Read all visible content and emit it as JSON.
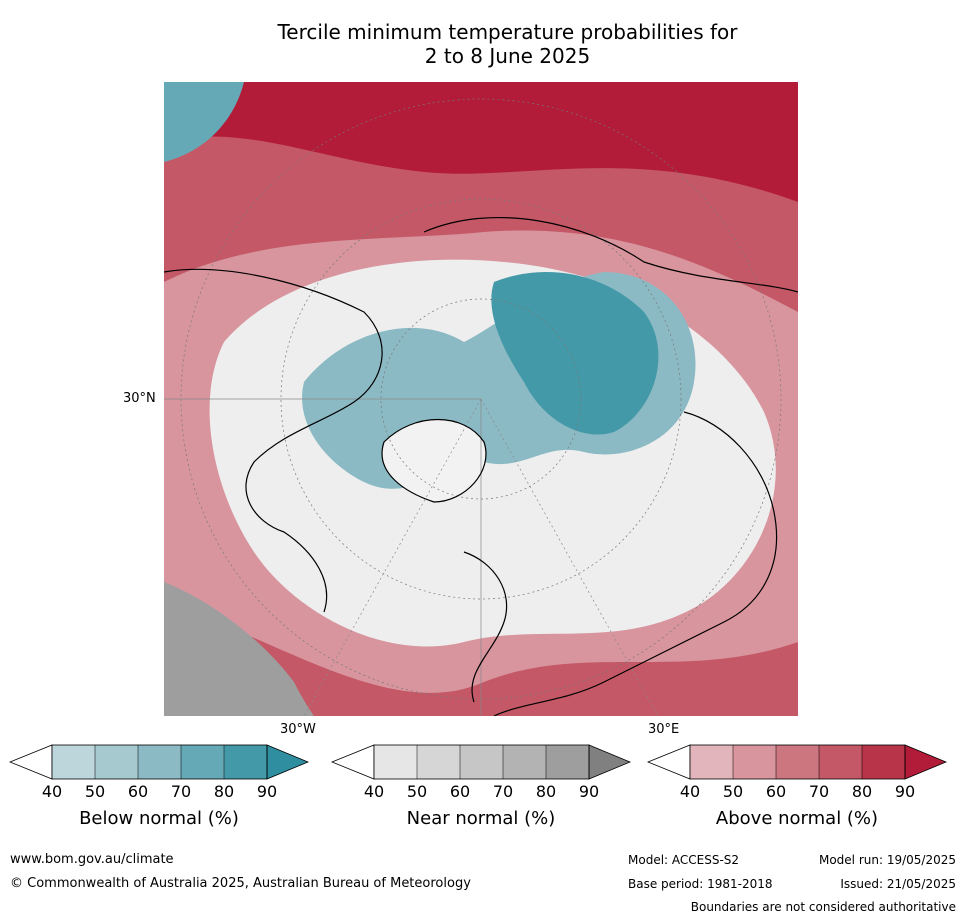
{
  "title_line1": "Tercile minimum temperature probabilities for",
  "title_line2": "2 to 8 June 2025",
  "map": {
    "lat_label": "30°N",
    "lon_label_west": "30°W",
    "lon_label_east": "30°E",
    "colors": {
      "below": [
        "#ffffff",
        "#bdd6dc",
        "#a6c9d0",
        "#8bbac4",
        "#66a9b6",
        "#4499a8",
        "#2f8ea0"
      ],
      "near": [
        "#ffffff",
        "#e6e6e6",
        "#d6d6d6",
        "#c6c6c6",
        "#b3b3b3",
        "#9e9e9e",
        "#808080"
      ],
      "above": [
        "#ffffff",
        "#e1b5bb",
        "#d8959e",
        "#cc7680",
        "#c45866",
        "#b83448",
        "#b21c38"
      ]
    }
  },
  "colorbars": [
    {
      "label": "Below normal (%)",
      "ticks": [
        "40",
        "50",
        "60",
        "70",
        "80",
        "90"
      ]
    },
    {
      "label": "Near normal (%)",
      "ticks": [
        "40",
        "50",
        "60",
        "70",
        "80",
        "90"
      ]
    },
    {
      "label": "Above normal (%)",
      "ticks": [
        "40",
        "50",
        "60",
        "70",
        "80",
        "90"
      ]
    }
  ],
  "footer": {
    "website": "www.bom.gov.au/climate",
    "copyright": "© Commonwealth of Australia 2025, Australian Bureau of Meteorology",
    "model": "Model: ACCESS-S2",
    "base_period": "Base period: 1981-2018",
    "model_run": "Model run: 19/05/2025",
    "issued": "Issued: 21/05/2025",
    "disclaimer": "Boundaries are not considered authoritative"
  }
}
